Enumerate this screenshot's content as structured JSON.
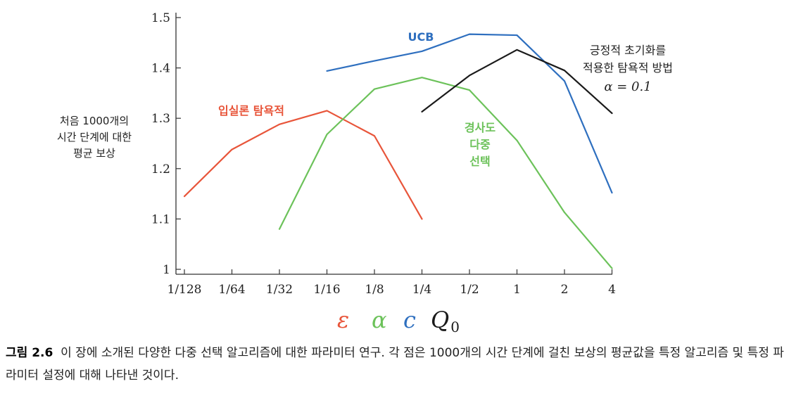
{
  "chart_data": {
    "type": "line",
    "x_categories": [
      "1/128",
      "1/64",
      "1/32",
      "1/16",
      "1/8",
      "1/4",
      "1/2",
      "1",
      "2",
      "4"
    ],
    "y_ticks": [
      "1",
      "1.1",
      "1.2",
      "1.3",
      "1.4",
      "1.5"
    ],
    "ylim": [
      1.0,
      1.5
    ],
    "ylabel": [
      "처음 1000개의",
      "시간 단계에 대한",
      "평균 보상"
    ],
    "grid": false,
    "series": [
      {
        "name": "입실론 탐욕적",
        "parameter": "ε",
        "color": "#e8553a",
        "x": [
          "1/128",
          "1/64",
          "1/32",
          "1/16",
          "1/8",
          "1/4"
        ],
        "y": [
          1.145,
          1.238,
          1.288,
          1.315,
          1.265,
          1.1
        ]
      },
      {
        "name": "경사도 다중 선택",
        "parameter": "α",
        "color": "#6cc25a",
        "x": [
          "1/32",
          "1/16",
          "1/8",
          "1/4",
          "1/2",
          "1",
          "2",
          "4"
        ],
        "y": [
          1.08,
          1.268,
          1.358,
          1.381,
          1.356,
          1.256,
          1.113,
          1.002
        ]
      },
      {
        "name": "UCB",
        "parameter": "c",
        "color": "#2e6fbf",
        "x": [
          "1/16",
          "1/8",
          "1/4",
          "1/2",
          "1",
          "2",
          "4"
        ],
        "y": [
          1.394,
          1.414,
          1.433,
          1.467,
          1.465,
          1.374,
          1.152
        ]
      },
      {
        "name": "긍정적 초기화를 적용한 탐욕적 방법",
        "name_lines": [
          "긍정적 초기화를",
          "적용한 탐욕적 방법"
        ],
        "annotation": "α = 0.1",
        "parameter": "Q0",
        "color": "#1a1a1a",
        "x": [
          "1/4",
          "1/2",
          "1",
          "2",
          "4"
        ],
        "y": [
          1.313,
          1.385,
          1.436,
          1.395,
          1.31
        ]
      }
    ],
    "x_parameter_labels": [
      {
        "text": "ε",
        "color": "#e8553a"
      },
      {
        "text": "α",
        "color": "#6cc25a"
      },
      {
        "text": "c",
        "color": "#2e6fbf"
      },
      {
        "text": "Q",
        "sub": "0",
        "color": "#1a1a1a"
      }
    ]
  },
  "caption": {
    "title": "그림 2.6",
    "text": "이 장에 소개된 다양한 다중 선택 알고리즘에 대한 파라미터 연구. 각 점은 1000개의 시간 단계에 걸친 보상의 평균값을 특정 알고리즘 및 특정 파라미터 설정에 대해 나타낸 것이다."
  }
}
